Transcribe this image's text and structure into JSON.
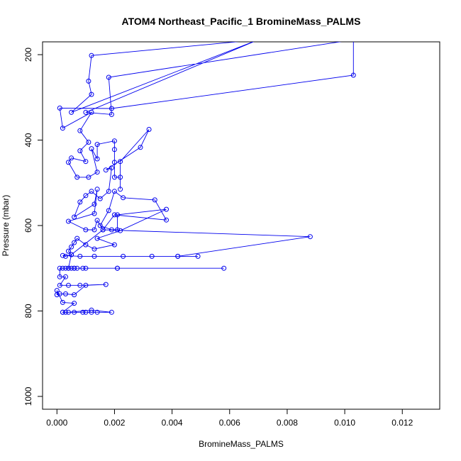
{
  "chart_data": {
    "type": "line",
    "title": "ATOM4 Northeast_Pacific_1 BromineMass_PALMS",
    "xlabel": "BromineMass_PALMS",
    "ylabel": "Pressure (mbar)",
    "xlim": [
      -0.0005,
      0.0133
    ],
    "ylim": [
      1030,
      170
    ],
    "y_inverted": true,
    "grid": false,
    "xticks": [
      0.0,
      0.002,
      0.004,
      0.006,
      0.008,
      0.01,
      0.012
    ],
    "xtick_labels": [
      "0.000",
      "0.002",
      "0.004",
      "0.006",
      "0.008",
      "0.010",
      "0.012"
    ],
    "yticks": [
      200,
      400,
      600,
      800,
      1000
    ],
    "ytick_labels": [
      "200",
      "400",
      "600",
      "800",
      "1000"
    ],
    "colors": {
      "series": "#0000ee",
      "axis": "#000000"
    },
    "series": [
      {
        "marker": "open-circle",
        "points": [
          [
            0.007,
            165
          ],
          [
            0.0012,
            202
          ],
          [
            0.0011,
            262
          ],
          [
            0.0012,
            293
          ],
          [
            0.0005,
            335
          ],
          [
            0.007,
            165
          ],
          [
            0.001,
            335
          ],
          [
            0.0019,
            340
          ],
          [
            0.0018,
            253
          ],
          [
            0.0103,
            165
          ],
          [
            0.0103,
            248
          ],
          [
            0.0019,
            326
          ],
          [
            0.0001,
            325
          ],
          [
            0.0002,
            372
          ],
          [
            0.0012,
            335
          ],
          [
            0.0008,
            378
          ],
          [
            0.0011,
            405
          ],
          [
            0.0008,
            425
          ],
          [
            0.001,
            450
          ],
          [
            0.0005,
            442
          ],
          [
            0.0004,
            452
          ],
          [
            0.0007,
            487
          ],
          [
            0.0011,
            487
          ],
          [
            0.0014,
            475
          ],
          [
            0.0012,
            420
          ],
          [
            0.0014,
            444
          ],
          [
            0.0014,
            410
          ],
          [
            0.002,
            402
          ],
          [
            0.002,
            422
          ],
          [
            0.002,
            452
          ],
          [
            0.002,
            487
          ],
          [
            0.0022,
            487
          ],
          [
            0.0022,
            515
          ],
          [
            0.0022,
            450
          ],
          [
            0.0032,
            375
          ],
          [
            0.0029,
            417
          ],
          [
            0.0017,
            470
          ],
          [
            0.0019,
            465
          ],
          [
            0.0018,
            520
          ],
          [
            0.0015,
            537
          ],
          [
            0.0012,
            520
          ],
          [
            0.001,
            530
          ],
          [
            0.0008,
            545
          ],
          [
            0.0006,
            580
          ],
          [
            0.0013,
            550
          ],
          [
            0.0014,
            515
          ],
          [
            0.0013,
            572
          ],
          [
            0.0004,
            590
          ],
          [
            0.001,
            610
          ],
          [
            0.0013,
            610
          ],
          [
            0.0014,
            588
          ],
          [
            0.0016,
            610
          ],
          [
            0.002,
            575
          ],
          [
            0.0038,
            587
          ],
          [
            0.0034,
            540
          ],
          [
            0.0023,
            535
          ],
          [
            0.002,
            520
          ],
          [
            0.0018,
            565
          ],
          [
            0.0015,
            600
          ],
          [
            0.0019,
            610
          ],
          [
            0.0021,
            610
          ],
          [
            0.0021,
            575
          ],
          [
            0.0038,
            562
          ],
          [
            0.0022,
            612
          ],
          [
            0.0014,
            630
          ],
          [
            0.002,
            645
          ],
          [
            0.0013,
            655
          ],
          [
            0.001,
            645
          ],
          [
            0.0007,
            630
          ],
          [
            0.0006,
            640
          ],
          [
            0.0005,
            650
          ],
          [
            0.0004,
            660
          ],
          [
            0.0005,
            668
          ],
          [
            0.0003,
            672
          ],
          [
            0.0002,
            670
          ],
          [
            0.0008,
            672
          ],
          [
            0.0013,
            672
          ],
          [
            0.0023,
            672
          ],
          [
            0.0033,
            672
          ],
          [
            0.0042,
            672
          ],
          [
            0.0049,
            672
          ],
          [
            0.0042,
            672
          ],
          [
            0.0088,
            626
          ],
          [
            0.0016,
            610
          ],
          [
            0.0005,
            668
          ],
          [
            0.0004,
            700
          ],
          [
            0.0005,
            700
          ],
          [
            0.0006,
            700
          ],
          [
            0.0007,
            700
          ],
          [
            0.0009,
            700
          ],
          [
            0.001,
            700
          ],
          [
            0.0021,
            700
          ],
          [
            0.0058,
            700
          ],
          [
            0.0021,
            700
          ],
          [
            0.0006,
            700
          ],
          [
            0.0004,
            700
          ],
          [
            0.0003,
            700
          ],
          [
            0.0002,
            700
          ],
          [
            0.0001,
            700
          ],
          [
            0.0001,
            720
          ],
          [
            0.0003,
            720
          ],
          [
            0.0001,
            740
          ],
          [
            0.0004,
            740
          ],
          [
            0.0008,
            740
          ],
          [
            0.0017,
            738
          ],
          [
            0.001,
            740
          ],
          [
            0.0006,
            762
          ],
          [
            0.0003,
            760
          ],
          [
            0.0001,
            760
          ],
          [
            0.0,
            762
          ],
          [
            0.0,
            752
          ],
          [
            0.0002,
            780
          ],
          [
            0.0006,
            782
          ],
          [
            0.0002,
            803
          ],
          [
            0.0003,
            803
          ],
          [
            0.0006,
            803
          ],
          [
            0.0009,
            803
          ],
          [
            0.001,
            803
          ],
          [
            0.0012,
            803
          ],
          [
            0.0014,
            803
          ],
          [
            0.0019,
            803
          ],
          [
            0.0012,
            798
          ],
          [
            0.0004,
            803
          ],
          [
            0.0002,
            803
          ]
        ]
      }
    ]
  }
}
